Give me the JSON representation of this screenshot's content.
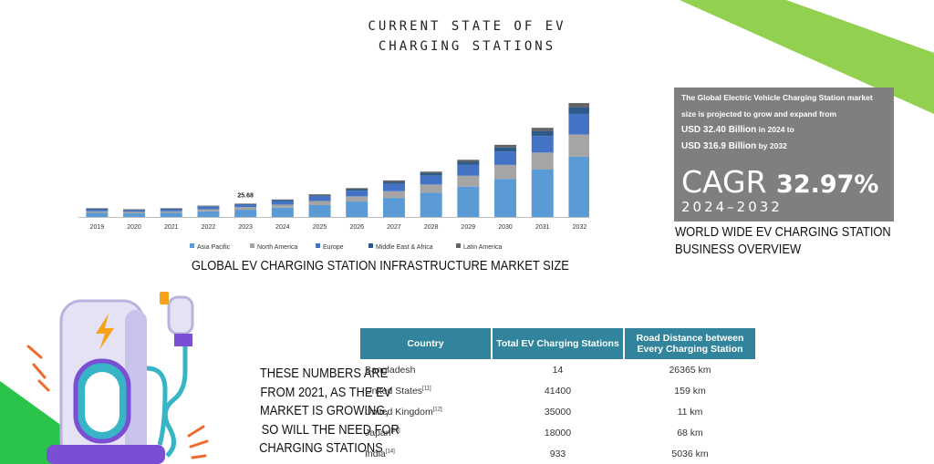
{
  "slide": {
    "title_line1": "CURRENT STATE OF EV",
    "title_line2": "CHARGING STATIONS"
  },
  "colors": {
    "green": "#92d050",
    "asia_pacific": "#5b9bd5",
    "north_america": "#a5a5a5",
    "europe": "#4472c4",
    "middle_east_africa": "#2e5a8a",
    "latin_america": "#636363",
    "table_header": "#31849b",
    "info_box": "#7f7f7f",
    "charger_orange": "#f7a21b",
    "charger_purple": "#7b4fd4",
    "charger_teal": "#37b5c6"
  },
  "chart_data": {
    "type": "bar",
    "stacked": true,
    "title": "",
    "xlabel": "",
    "ylabel": "",
    "ylim": [
      0,
      230
    ],
    "grid": false,
    "legend_position": "bottom",
    "categories": [
      "2019",
      "2020",
      "2021",
      "2022",
      "2023",
      "2024",
      "2025",
      "2026",
      "2027",
      "2028",
      "2029",
      "2030",
      "2031",
      "2032"
    ],
    "series": [
      {
        "name": "Asia Pacific",
        "values": [
          8,
          7,
          8,
          11,
          14,
          18,
          23,
          30,
          37,
          47,
          59,
          74,
          92,
          117
        ]
      },
      {
        "name": "North America",
        "values": [
          3,
          3,
          3,
          4,
          5,
          6,
          8,
          10,
          13,
          16,
          21,
          27,
          33,
          43
        ]
      },
      {
        "name": "Europe",
        "values": [
          4,
          3,
          4,
          5,
          5,
          7,
          9,
          11,
          14,
          17,
          21,
          26,
          32,
          40
        ]
      },
      {
        "name": "Middle East & Africa",
        "values": [
          1,
          1,
          1,
          1,
          1,
          2,
          2,
          3,
          4,
          5,
          6,
          8,
          10,
          13
        ]
      },
      {
        "name": "Latin America",
        "values": [
          1,
          1,
          1,
          1,
          1,
          1,
          2,
          2,
          3,
          3,
          4,
          5,
          6,
          8
        ]
      }
    ],
    "annotations": [
      {
        "category": "2023",
        "text": "25.68"
      }
    ]
  },
  "chart_caption": "GLOBAL EV CHARGING STATION INFRASTRUCTURE MARKET SIZE",
  "info_box": {
    "line1": "The Global Electric Vehicle Charging Station market",
    "line2": "size is projected to grow and expand from",
    "line3a": "USD 32.40 Billion",
    "line3b": " in 2024 to",
    "line4a": "USD 316.9 Billion",
    "line4b": " by 2032",
    "cagr_label": "CAGR ",
    "cagr_value": "32.97%",
    "cagr_years": "2024–2032"
  },
  "box_caption": {
    "line1": "WORLD WIDE EV CHARGING STATION",
    "line2": "BUSINESS OVERVIEW"
  },
  "note": {
    "line1": "THESE NUMBERS ARE",
    "line2": "FROM 2021, AS THE EV",
    "line3": "MARKET IS GROWING,",
    "line4": "SO WILL THE NEED FOR",
    "line5": "CHARGING STATIONS"
  },
  "table": {
    "headers": [
      "Country",
      "Total EV Charging Stations",
      "Road Distance between Every Charging Station"
    ],
    "rows": [
      {
        "country": "Bangladesh",
        "ref": "",
        "stations": "14",
        "distance": "26365 km"
      },
      {
        "country": "United States",
        "ref": "[11]",
        "stations": "41400",
        "distance": "159 km"
      },
      {
        "country": "United Kingdom",
        "ref": "[12]",
        "stations": "35000",
        "distance": "11 km"
      },
      {
        "country": "Japan",
        "ref": "[13]",
        "stations": "18000",
        "distance": "68 km"
      },
      {
        "country": "India",
        "ref": "[14]",
        "stations": "933",
        "distance": "5036 km"
      }
    ]
  }
}
